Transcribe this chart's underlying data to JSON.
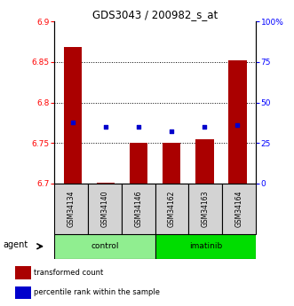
{
  "title": "GDS3043 / 200982_s_at",
  "categories": [
    "GSM34134",
    "GSM34140",
    "GSM34146",
    "GSM34162",
    "GSM34163",
    "GSM34164"
  ],
  "bar_values": [
    6.868,
    6.701,
    6.75,
    6.75,
    6.755,
    6.852
  ],
  "bar_base": 6.7,
  "percentile_values": [
    38,
    35,
    35,
    32,
    35,
    36
  ],
  "ylim_left": [
    6.7,
    6.9
  ],
  "ylim_right": [
    0,
    100
  ],
  "yticks_left": [
    6.7,
    6.75,
    6.8,
    6.85,
    6.9
  ],
  "yticks_right": [
    0,
    25,
    50,
    75,
    100
  ],
  "bar_color": "#AA0000",
  "dot_color": "#0000CC",
  "bar_width": 0.55,
  "group_label": "agent",
  "control_color": "#90EE90",
  "imatinib_color": "#00DD00",
  "sample_label_color": "#D3D3D3",
  "legend_items": [
    "transformed count",
    "percentile rank within the sample"
  ],
  "gridline_y": [
    6.75,
    6.8,
    6.85
  ],
  "title_fontsize": 8.5
}
